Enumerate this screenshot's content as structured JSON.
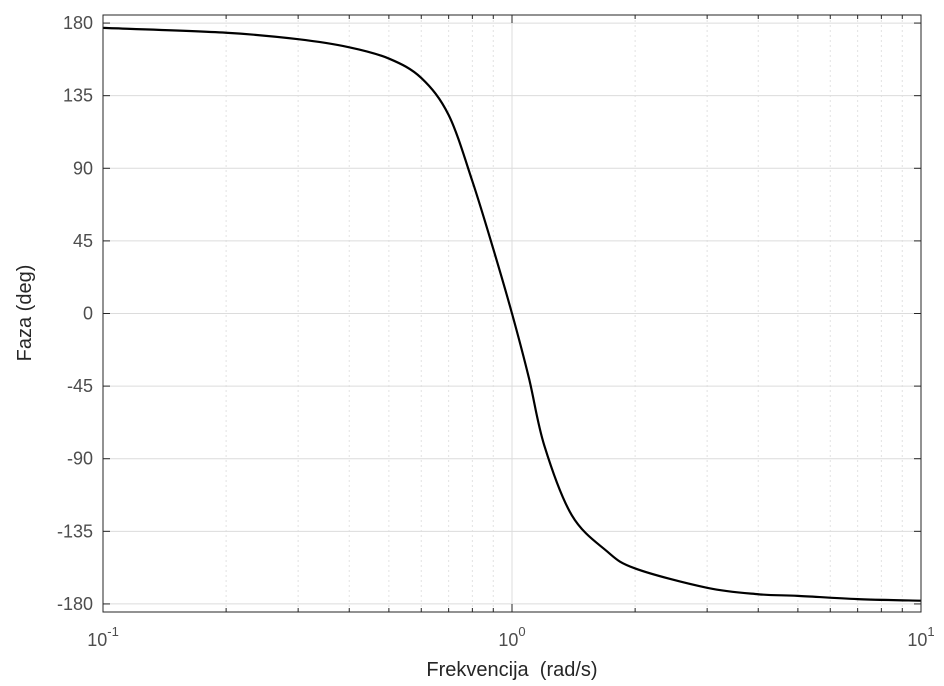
{
  "chart_data": {
    "type": "line",
    "title": "",
    "xlabel": "Frekvencija  (rad/s)",
    "ylabel": "Faza (deg)",
    "xscale": "log",
    "xlim": [
      0.1,
      10
    ],
    "ylim": [
      -185,
      185
    ],
    "grid": true,
    "minor_grid": true,
    "x_ticks": [
      {
        "value": 0.1,
        "base": "10",
        "exp": "-1"
      },
      {
        "value": 1,
        "base": "10",
        "exp": "0"
      },
      {
        "value": 10,
        "base": "10",
        "exp": "1"
      }
    ],
    "y_ticks": [
      180,
      135,
      90,
      45,
      0,
      -45,
      -90,
      -135,
      -180
    ],
    "y_tick_labels": [
      "180",
      "135",
      "90",
      "45",
      "0",
      "-45",
      "-90",
      "-135",
      "-180"
    ],
    "series": [
      {
        "color": "#000000",
        "x": [
          0.1,
          0.2,
          0.3,
          0.4,
          0.5,
          0.6,
          0.7,
          0.8,
          0.9,
          1.0,
          1.1,
          1.2,
          1.4,
          1.7,
          2,
          3,
          4,
          5,
          7,
          10
        ],
        "y": [
          177,
          174,
          170,
          165,
          158,
          146,
          123,
          82,
          40,
          0,
          -40,
          -82,
          -125,
          -147,
          -158,
          -170,
          -174,
          -175,
          -177,
          -178
        ]
      }
    ]
  }
}
